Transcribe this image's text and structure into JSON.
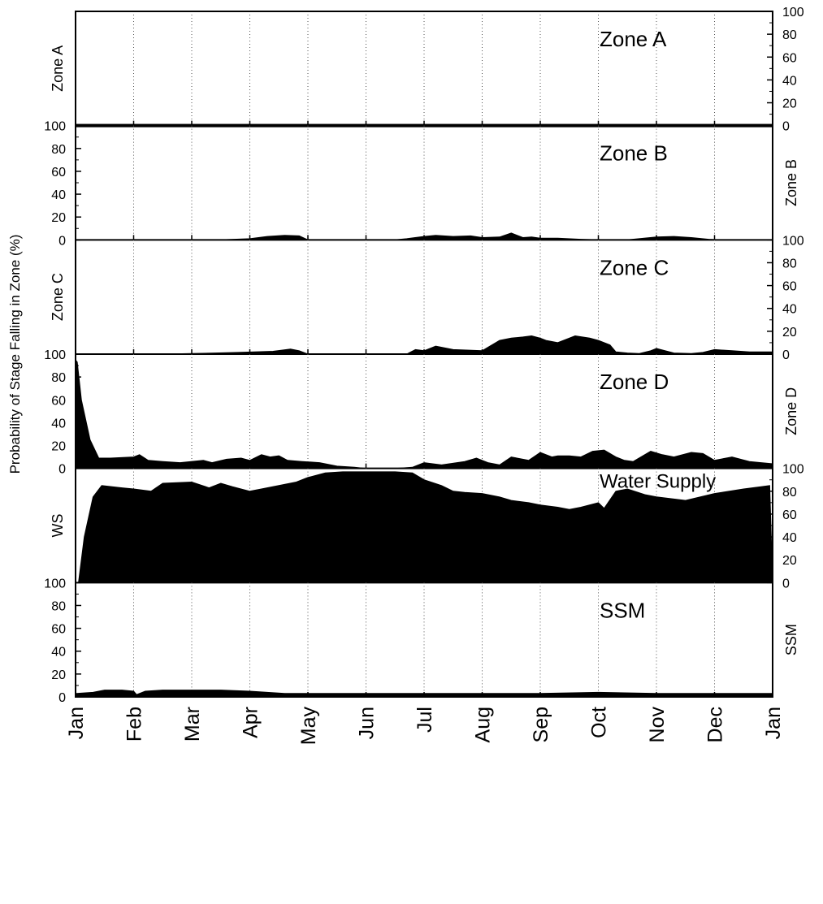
{
  "ylabel": "Probability of Stage Falling in Zone (%)",
  "colors": {
    "fill": "#000000",
    "background": "#ffffff",
    "axis": "#000000",
    "grid": "#555555"
  },
  "chart_data": {
    "type": "area",
    "months": [
      "Jan",
      "Feb",
      "Mar",
      "Apr",
      "May",
      "Jun",
      "Jul",
      "Aug",
      "Sep",
      "Oct",
      "Nov",
      "Dec",
      "Jan"
    ],
    "ylim": [
      0,
      100
    ],
    "yticks": [
      0,
      20,
      40,
      60,
      80,
      100
    ],
    "grid": "vertical dotted at month boundaries",
    "panels": [
      {
        "zone": "Zone A",
        "left_label": "Zone A",
        "right_label": "",
        "title": "Zone A",
        "left_ticks": false,
        "right_ticks": true,
        "x": [
          0,
          12
        ],
        "values": [
          1,
          1
        ]
      },
      {
        "zone": "Zone B",
        "left_label": "",
        "right_label": "Zone B",
        "title": "Zone B",
        "left_ticks": true,
        "right_ticks": false,
        "x": [
          0,
          2.5,
          3.0,
          3.3,
          3.6,
          3.85,
          4.0,
          4.3,
          5.5,
          5.7,
          6.0,
          6.2,
          6.5,
          6.8,
          7.0,
          7.3,
          7.5,
          7.7,
          7.85,
          8.0,
          8.3,
          8.7,
          9.0,
          9.5,
          10.0,
          10.3,
          10.6,
          10.9,
          11.1,
          12
        ],
        "values": [
          0,
          0,
          1,
          3,
          4,
          3.5,
          0,
          0,
          0,
          1,
          3,
          4,
          3,
          3.5,
          2,
          2.5,
          6,
          2,
          2.5,
          1.5,
          1.5,
          0.5,
          0,
          0,
          2.5,
          3,
          2,
          0.5,
          0,
          0
        ]
      },
      {
        "zone": "Zone C",
        "left_label": "Zone C",
        "right_label": "",
        "title": "Zone C",
        "left_ticks": false,
        "right_ticks": true,
        "x": [
          0,
          1.5,
          2.0,
          2.4,
          2.8,
          3.4,
          3.7,
          3.85,
          4.0,
          4.3,
          5.0,
          5.7,
          5.85,
          6.0,
          6.2,
          6.5,
          7.0,
          7.3,
          7.5,
          7.7,
          7.85,
          8.0,
          8.1,
          8.3,
          8.6,
          8.85,
          9.0,
          9.2,
          9.3,
          9.5,
          9.7,
          9.9,
          10.0,
          10.3,
          10.6,
          10.8,
          11.0,
          11.3,
          11.6,
          12
        ],
        "values": [
          0,
          0,
          0.5,
          1,
          1.5,
          2.5,
          4.5,
          3,
          0,
          0,
          0,
          0,
          4,
          3,
          7,
          4,
          3,
          12,
          14,
          15,
          16,
          14,
          12,
          10,
          16,
          14,
          12,
          8,
          2,
          1,
          0.5,
          3,
          5,
          1,
          0.5,
          1.5,
          4,
          3,
          2,
          2
        ]
      },
      {
        "zone": "Zone D",
        "left_label": "",
        "right_label": "Zone D",
        "title": "Zone D",
        "left_ticks": true,
        "right_ticks": false,
        "x": [
          0,
          0.03,
          0.1,
          0.25,
          0.4,
          0.6,
          1.0,
          1.1,
          1.25,
          1.5,
          1.8,
          2.2,
          2.35,
          2.6,
          2.85,
          3.0,
          3.2,
          3.35,
          3.5,
          3.65,
          3.9,
          4.2,
          4.5,
          4.8,
          5.0,
          5.5,
          5.8,
          6.0,
          6.3,
          6.7,
          6.9,
          7.1,
          7.3,
          7.5,
          7.8,
          8.0,
          8.2,
          8.3,
          8.5,
          8.7,
          8.9,
          9.1,
          9.3,
          9.45,
          9.6,
          9.9,
          10.1,
          10.3,
          10.6,
          10.8,
          11.0,
          11.3,
          11.6,
          11.8,
          12
        ],
        "values": [
          95,
          93,
          60,
          25,
          9,
          9,
          10,
          12,
          7,
          6,
          5,
          7,
          5,
          8,
          9,
          7,
          12,
          10,
          11,
          7,
          6,
          5,
          2,
          1,
          0,
          0,
          1,
          5,
          3,
          6,
          9,
          5,
          3,
          10,
          7,
          14,
          10,
          11,
          11,
          10,
          15,
          16,
          10,
          7,
          6,
          15,
          12,
          10,
          14,
          13,
          7,
          10,
          6,
          5,
          4
        ]
      },
      {
        "zone": "Water Supply",
        "left_label": "WS",
        "right_label": "",
        "title": "Water Supply",
        "left_ticks": false,
        "right_ticks": true,
        "x": [
          0,
          0.05,
          0.15,
          0.3,
          0.45,
          0.8,
          1.0,
          1.3,
          1.5,
          2.0,
          2.3,
          2.5,
          2.7,
          3.0,
          3.2,
          3.5,
          3.8,
          4.0,
          4.3,
          4.6,
          5.0,
          5.2,
          5.5,
          5.8,
          6.0,
          6.3,
          6.5,
          6.7,
          7.0,
          7.3,
          7.5,
          7.8,
          8.0,
          8.3,
          8.5,
          8.7,
          9.0,
          9.1,
          9.3,
          9.5,
          9.8,
          10.0,
          10.5,
          11.0,
          11.5,
          11.8,
          11.95,
          12
        ],
        "values": [
          0,
          0,
          40,
          75,
          85,
          83,
          82,
          80,
          87,
          88,
          83,
          87,
          84,
          80,
          82,
          85,
          88,
          92,
          96,
          97,
          97,
          97,
          97,
          96,
          90,
          85,
          80,
          79,
          78,
          75,
          72,
          70,
          68,
          66,
          64,
          66,
          70,
          65,
          80,
          82,
          77,
          75,
          72,
          78,
          82,
          84,
          85,
          0
        ]
      },
      {
        "zone": "SSM",
        "left_label": "",
        "right_label": "SSM",
        "title": "SSM",
        "left_ticks": true,
        "right_ticks": false,
        "x": [
          0,
          0.3,
          0.5,
          0.8,
          1.0,
          1.05,
          1.2,
          1.5,
          2.0,
          2.5,
          3.0,
          3.3,
          3.6,
          4.0,
          5.0,
          6.0,
          7.0,
          8.0,
          9.0,
          10.0,
          11.0,
          12
        ],
        "values": [
          3,
          4,
          6,
          6,
          5,
          2,
          5,
          6,
          6,
          6,
          5,
          4,
          3,
          3,
          3,
          3,
          3,
          3,
          4,
          3,
          3,
          3
        ]
      }
    ]
  }
}
